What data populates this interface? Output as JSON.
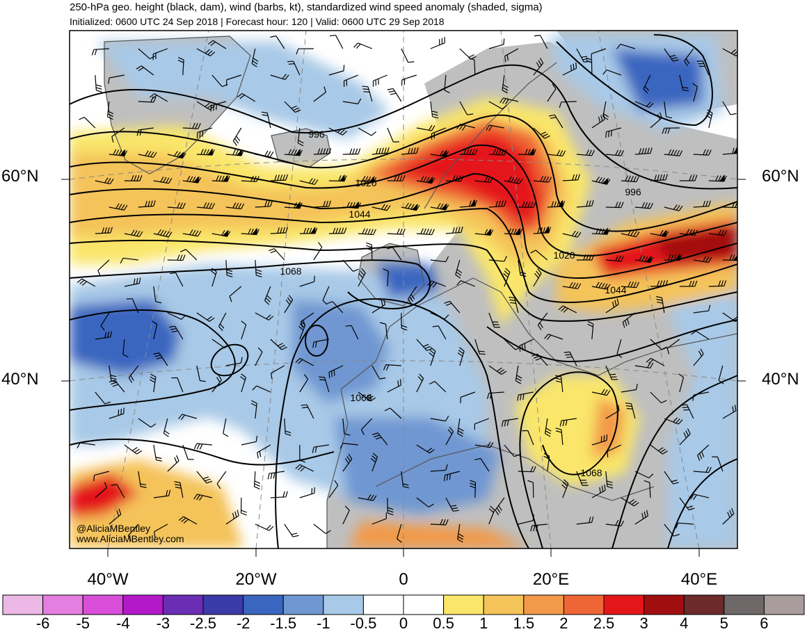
{
  "header": {
    "title": "250-hPa geo. height (black, dam), wind (barbs, kt), standardized wind speed anomaly (shaded, sigma)",
    "subtitle": "Initialized: 0600 UTC 24 Sep 2018 | Forecast hour: 120 | Valid: 0600 UTC 29 Sep 2018"
  },
  "credits": {
    "handle": "@AliciaMBentley",
    "website": "www.AliciaMBentley.com"
  },
  "latitude_labels": [
    "60°N",
    "40°N"
  ],
  "longitude_labels": [
    "40°W",
    "20°W",
    "0",
    "20°E",
    "40°E"
  ],
  "contour_labels": [
    "996",
    "1020",
    "1044",
    "1068",
    "996",
    "1020",
    "1044",
    "1068",
    "1068"
  ],
  "colorbar": {
    "ticks": [
      "-6",
      "-5",
      "-4",
      "-3",
      "-2.5",
      "-2",
      "-1.5",
      "-1",
      "-0.5",
      "0",
      "0.5",
      "1",
      "1.5",
      "2",
      "2.5",
      "3",
      "4",
      "5",
      "6"
    ],
    "colors": [
      "#ecb8e6",
      "#e47ee0",
      "#d84ed8",
      "#b319c9",
      "#6a2db4",
      "#3a3aa8",
      "#3a66c0",
      "#6f97d2",
      "#a8c9e7",
      "#ffffff",
      "#ffffff",
      "#f9e66a",
      "#f4c35a",
      "#f29a4a",
      "#ef6636",
      "#e4161a",
      "#a10e10",
      "#6c2a2a",
      "#6e6868",
      "#a89c9c"
    ]
  },
  "colors": {
    "land": "#bfbfbf",
    "contour": "#000000",
    "coast": "#555555"
  }
}
